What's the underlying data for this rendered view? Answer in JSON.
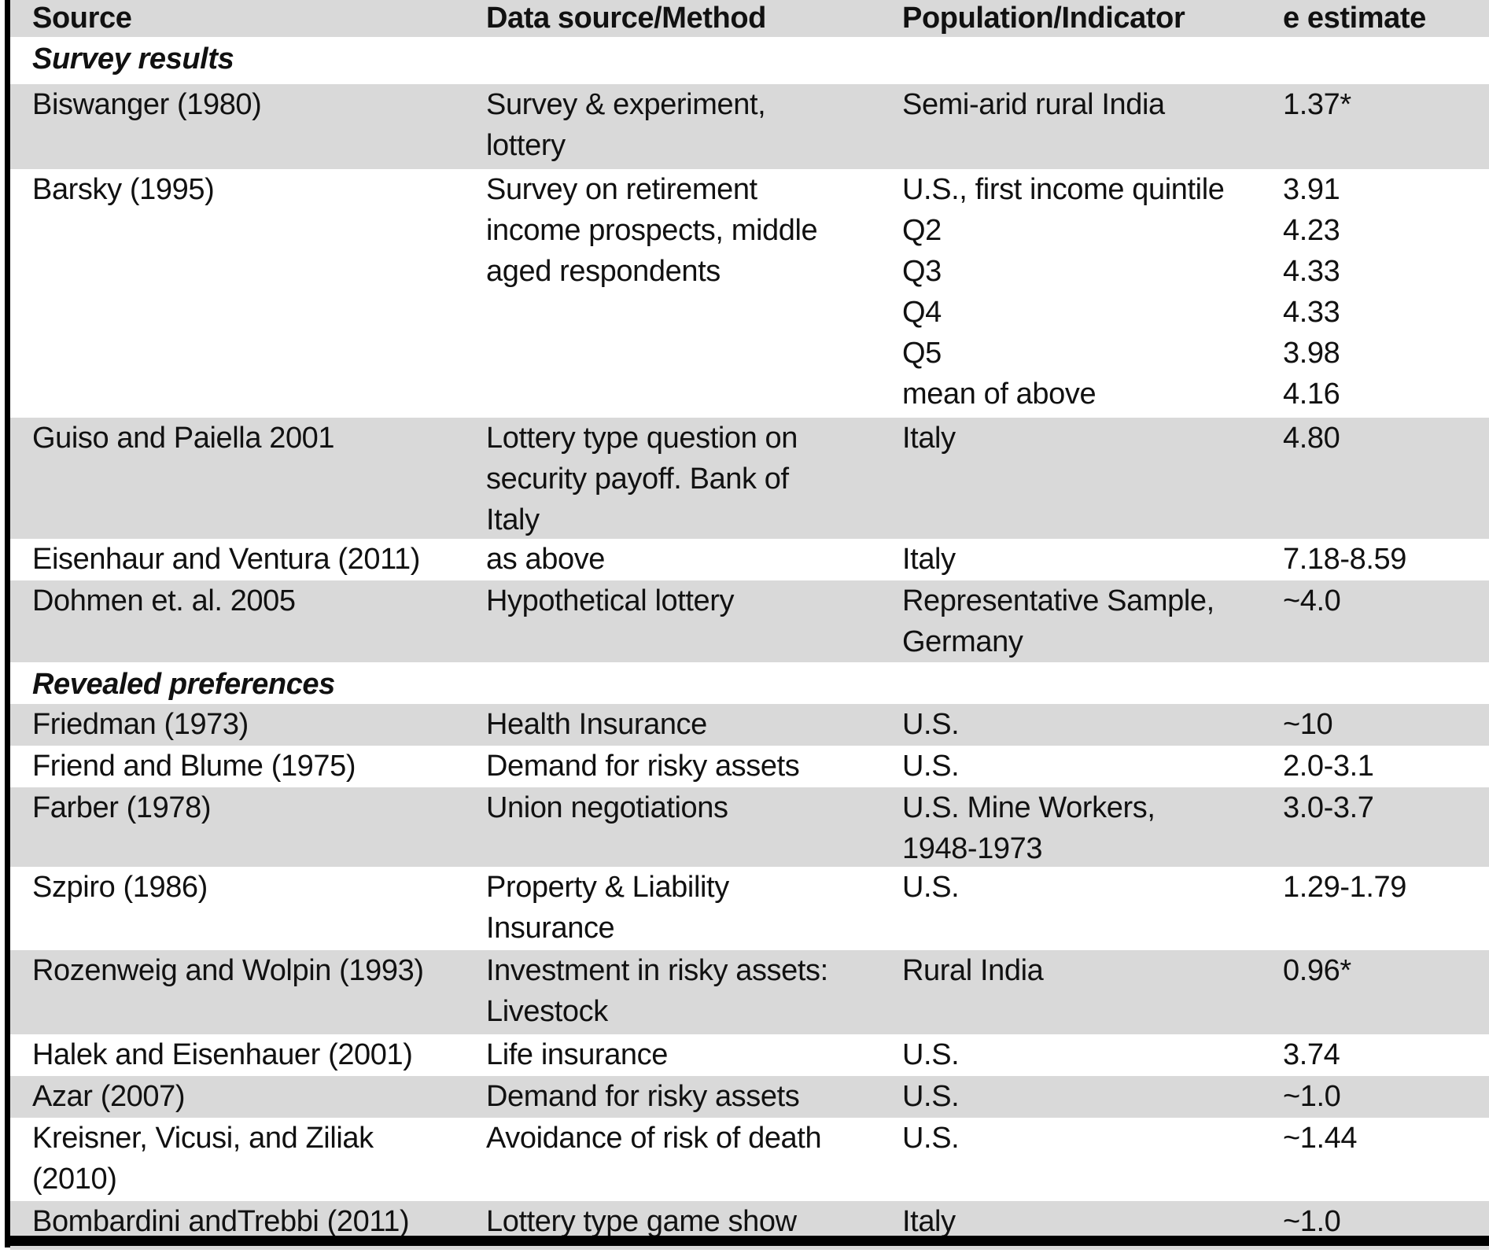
{
  "columns": [
    "Source",
    "Data source/Method",
    "Population/Indicator",
    "e estimate"
  ],
  "colors": {
    "row_shade": "#d9d9d9",
    "border": "#000000",
    "text": "#111111"
  },
  "sections": [
    {
      "label": "Survey results",
      "rows": [
        {
          "source": "Biswanger (1980)",
          "method": "Survey & experiment,\nlottery",
          "population": "Semi-arid rural India",
          "estimate": "1.37*"
        },
        {
          "source": "Barsky (1995)",
          "method": "Survey on retirement\nincome prospects, middle\naged respondents",
          "population": "U.S., first income quintile\nQ2\nQ3\nQ4\nQ5\nmean of above",
          "estimate": "3.91\n4.23\n4.33\n4.33\n3.98\n4.16"
        },
        {
          "source": "Guiso and Paiella 2001",
          "method": "Lottery type question on\nsecurity payoff. Bank of\nItaly",
          "population": "Italy",
          "estimate": "4.80"
        },
        {
          "source": "Eisenhaur and Ventura (2011)",
          "method": "as above",
          "population": "Italy",
          "estimate": "7.18-8.59"
        },
        {
          "source": "Dohmen et. al. 2005",
          "method": "Hypothetical lottery",
          "population": "Representative Sample,\nGermany",
          "estimate": "~4.0"
        }
      ]
    },
    {
      "label": "Revealed preferences",
      "rows": [
        {
          "source": "Friedman (1973)",
          "method": "Health Insurance",
          "population": "U.S.",
          "estimate": "~10"
        },
        {
          "source": "Friend  and Blume (1975)",
          "method": "Demand for risky assets",
          "population": "U.S.",
          "estimate": "2.0-3.1"
        },
        {
          "source": "Farber (1978)",
          "method": "Union negotiations",
          "population": "U.S. Mine Workers,\n1948-1973",
          "estimate": "3.0-3.7"
        },
        {
          "source": "Szpiro (1986)",
          "method": "Property & Liability\nInsurance",
          "population": "U.S.",
          "estimate": "1.29-1.79"
        },
        {
          "source": "Rozenweig and Wolpin (1993)",
          "method": "Investment in risky assets:\nLivestock",
          "population": "Rural India",
          "estimate": "0.96*"
        },
        {
          "source": "Halek and Eisenhauer (2001)",
          "method": "Life insurance",
          "population": "U.S.",
          "estimate": "3.74"
        },
        {
          "source": "Azar (2007)",
          "method": "Demand for risky assets",
          "population": "U.S.",
          "estimate": "~1.0"
        },
        {
          "source": "Kreisner, Vicusi, and Ziliak\n(2010)",
          "method": "Avoidance of risk of death",
          "population": "U.S.",
          "estimate": "~1.44"
        },
        {
          "source": "Bombardini andTrebbi (2011)",
          "method": "Lottery type game show",
          "population": "Italy",
          "estimate": "~1.0"
        }
      ]
    }
  ]
}
